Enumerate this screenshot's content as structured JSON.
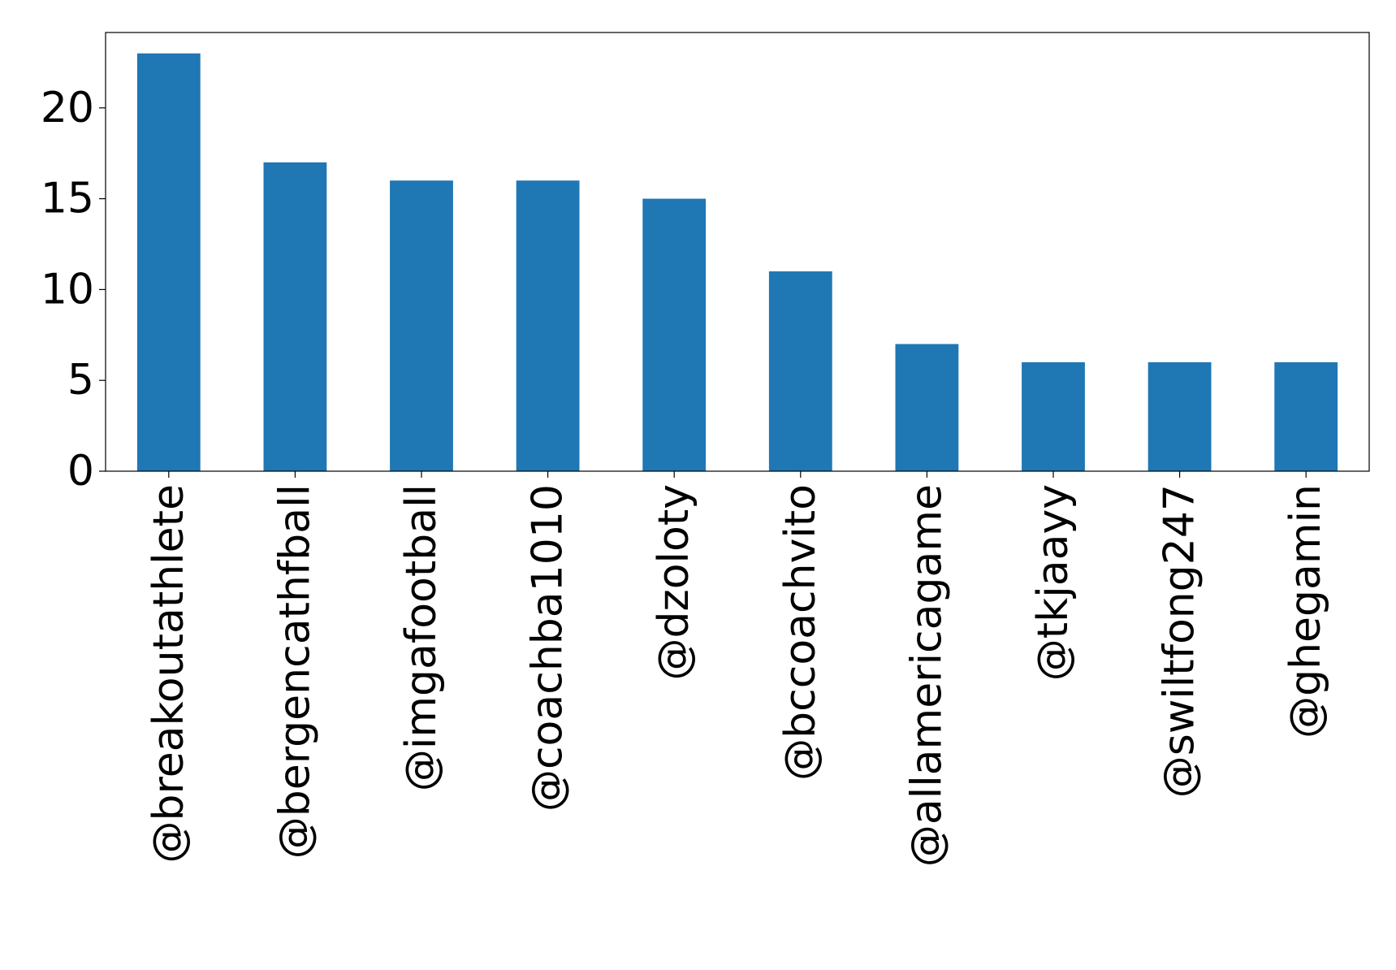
{
  "chart_data": {
    "type": "bar",
    "title": "",
    "xlabel": "",
    "ylabel": "",
    "categories": [
      "@breakoutathlete",
      "@bergencathfball",
      "@imgafootball",
      "@coachba1010",
      "@dzoloty",
      "@bccoachvito",
      "@allamericagame",
      "@tkjaayy",
      "@swiltfong247",
      "@ghegamin"
    ],
    "values": [
      23,
      17,
      16,
      16,
      15,
      11,
      7,
      6,
      6,
      6
    ],
    "ylim": [
      0,
      24.15
    ],
    "yticks": [
      0,
      5,
      10,
      15,
      20
    ],
    "grid": false,
    "legend": "none",
    "bar_color": "#1f77b4",
    "axis_color": "#000000"
  }
}
